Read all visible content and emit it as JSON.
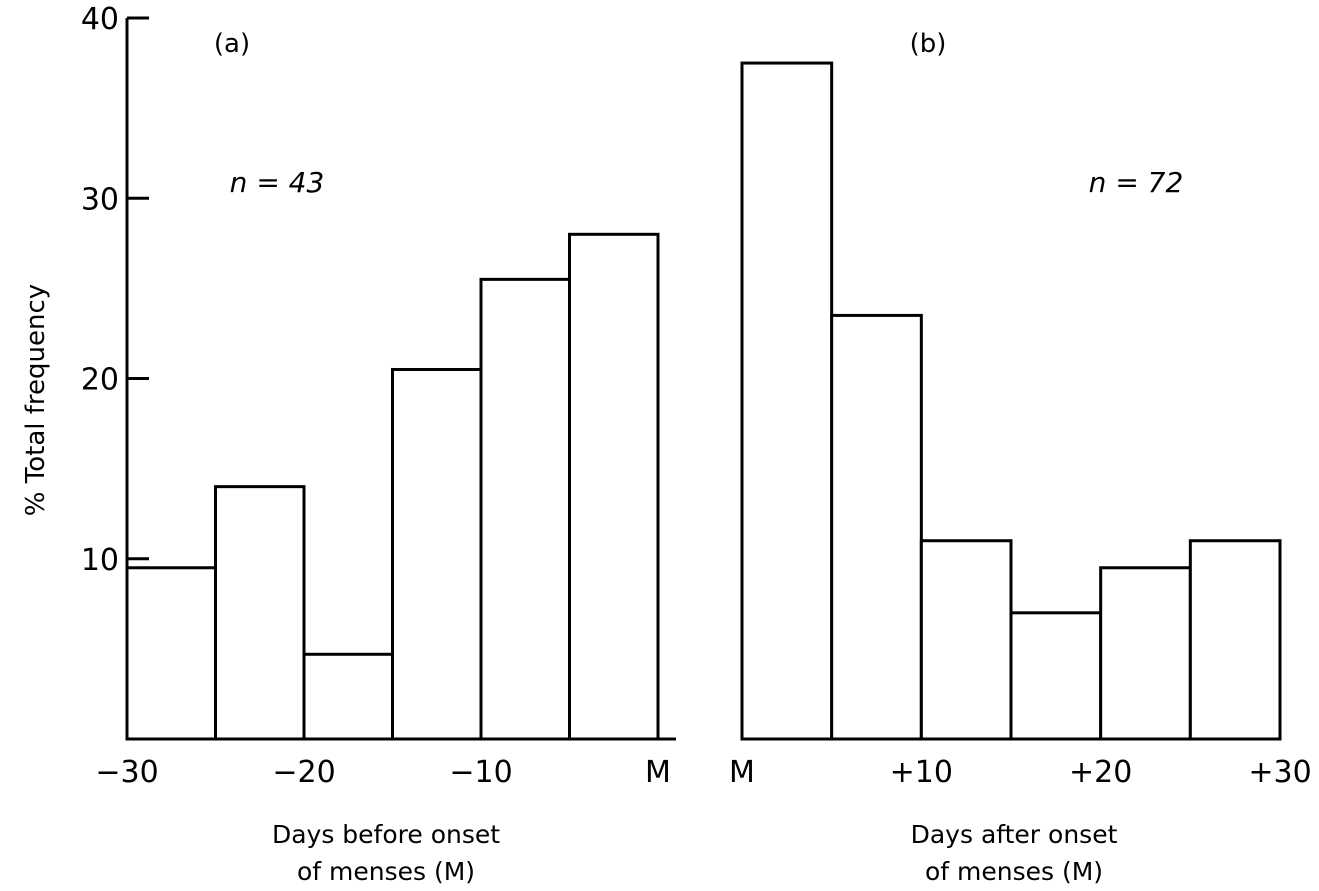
{
  "chart_data": {
    "ylabel": "% Total frequency",
    "ylim": [
      0,
      40
    ],
    "yticks": [
      "10",
      "20",
      "30",
      "40"
    ],
    "grid": false,
    "panels": [
      {
        "panel_label": "(a)",
        "type": "bar",
        "n_label": "n = 43",
        "xlabel_line1": "Days before onset",
        "xlabel_line2": "of menses (M)",
        "xlim": [
          -30,
          0
        ],
        "bin_width": 5,
        "bins_start": [
          -30,
          -25,
          -20,
          -15,
          -10,
          -5
        ],
        "values": [
          9.5,
          14,
          4.7,
          20.5,
          25.5,
          28
        ],
        "xticks": [
          {
            "value": -30,
            "label": "−30"
          },
          {
            "value": -20,
            "label": "−20"
          },
          {
            "value": -10,
            "label": "−10"
          },
          {
            "value": 0,
            "label": "M"
          }
        ]
      },
      {
        "panel_label": "(b)",
        "type": "bar",
        "n_label": "n = 72",
        "xlabel_line1": "Days after onset",
        "xlabel_line2": "of menses (M)",
        "xlim": [
          0,
          30
        ],
        "bin_width": 5,
        "bins_start": [
          0,
          5,
          10,
          15,
          20,
          25
        ],
        "values": [
          37.5,
          23.5,
          11,
          7,
          9.5,
          11
        ],
        "xticks": [
          {
            "value": 0,
            "label": "M"
          },
          {
            "value": 10,
            "label": "+10"
          },
          {
            "value": 20,
            "label": "+20"
          },
          {
            "value": 30,
            "label": "+30"
          }
        ]
      }
    ]
  }
}
